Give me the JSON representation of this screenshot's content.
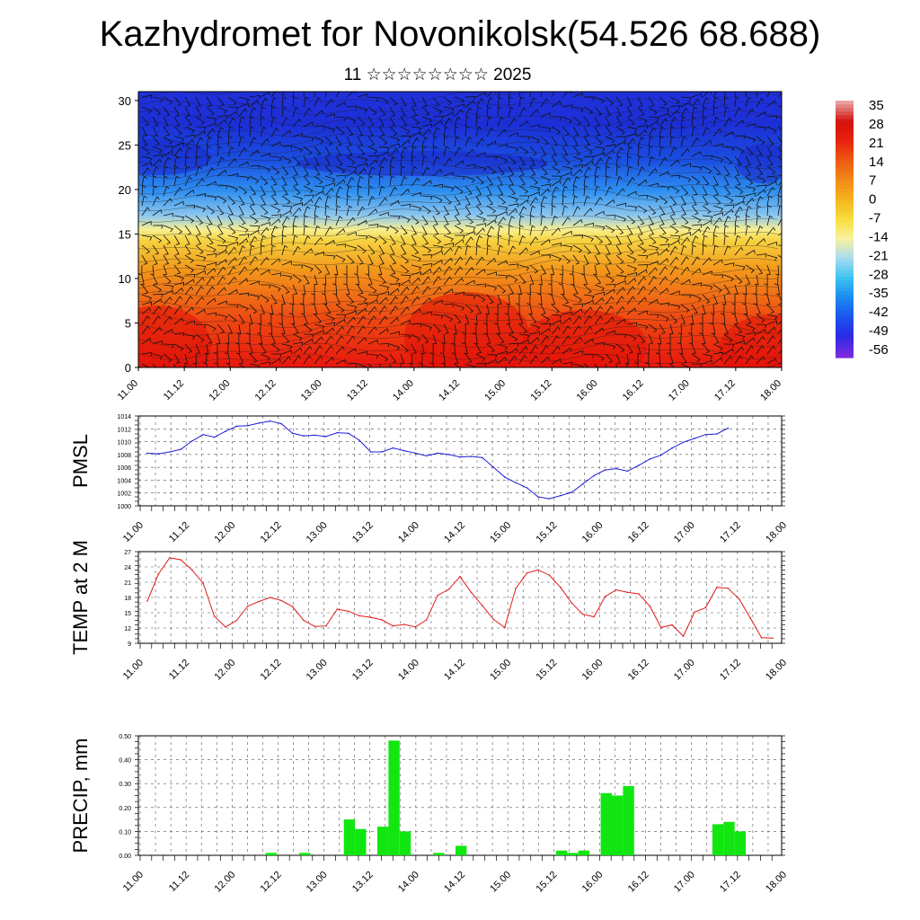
{
  "header": {
    "title": "Kazhydromet for Novonikolsk(54.526 68.688)",
    "subtitle": "11 ☆☆☆☆☆☆☆☆ 2025"
  },
  "chart_data": [
    {
      "type": "heatmap",
      "name": "cross-section",
      "x_ticks": [
        "11.00",
        "11.12",
        "12.00",
        "12.12",
        "13.00",
        "13.12",
        "14.00",
        "14.12",
        "15.00",
        "15.12",
        "16.00",
        "16.12",
        "17.00",
        "17.12",
        "18.00"
      ],
      "y_ticks": [
        0,
        5,
        10,
        15,
        20,
        25,
        30
      ],
      "ylim": [
        0,
        31
      ],
      "colorbar_labels": [
        35,
        28,
        21,
        14,
        7,
        0,
        -7,
        -14,
        -21,
        -28,
        -35,
        -42,
        -49,
        -56
      ],
      "overlay": "wind barbs and contour lines",
      "colors": {
        "warm": "#e8160e",
        "mid": "#f4e25a",
        "cold": "#1a34d6"
      }
    },
    {
      "type": "line",
      "name": "pmsl",
      "ylabel": "PMSL",
      "x_ticks": [
        "11.00",
        "11.12",
        "12.00",
        "12.12",
        "13.00",
        "13.12",
        "14.00",
        "14.12",
        "15.00",
        "15.12",
        "16.00",
        "16.12",
        "17.00",
        "17.12",
        "18.00"
      ],
      "y_ticks": [
        1000,
        1002,
        1004,
        1006,
        1008,
        1010,
        1012,
        1014
      ],
      "ylim": [
        1000,
        1014
      ],
      "step_hours": 3,
      "color": "#1f1fd6",
      "values": [
        1008.2,
        1008.1,
        1008.4,
        1008.8,
        1010.1,
        1011.1,
        1010.7,
        1011.6,
        1012.4,
        1012.5,
        1012.9,
        1013.2,
        1012.8,
        1011.3,
        1010.9,
        1011.0,
        1010.8,
        1011.4,
        1011.3,
        1010.2,
        1008.4,
        1008.4,
        1009.0,
        1008.6,
        1008.2,
        1007.8,
        1008.2,
        1008.0,
        1007.6,
        1007.7,
        1007.5,
        1006.0,
        1004.5,
        1003.6,
        1002.8,
        1001.4,
        1001.1,
        1001.6,
        1002.1,
        1003.4,
        1004.7,
        1005.6,
        1005.8,
        1005.4,
        1006.3,
        1007.3,
        1007.9,
        1009.0,
        1009.9,
        1010.5,
        1011.1,
        1011.2,
        1012.1
      ]
    },
    {
      "type": "line",
      "name": "temp",
      "ylabel": "TEMP at 2 M",
      "x_ticks": [
        "11.00",
        "11.12",
        "12.00",
        "12.12",
        "13.00",
        "13.12",
        "14.00",
        "14.12",
        "15.00",
        "15.12",
        "16.00",
        "16.12",
        "17.00",
        "17.12",
        "18.00"
      ],
      "y_ticks": [
        9,
        12,
        15,
        18,
        21,
        24,
        27
      ],
      "ylim": [
        9,
        27
      ],
      "step_hours": 3,
      "color": "#e11b1b",
      "values": [
        17.3,
        22.6,
        25.8,
        25.4,
        23.4,
        20.8,
        14.3,
        12.2,
        13.5,
        16.3,
        17.2,
        18.0,
        17.4,
        16.2,
        13.5,
        12.3,
        12.4,
        15.7,
        15.3,
        14.4,
        14.1,
        13.6,
        12.4,
        12.7,
        12.2,
        13.6,
        18.4,
        19.6,
        22.1,
        19.0,
        16.4,
        13.7,
        12.1,
        19.8,
        22.8,
        23.4,
        22.4,
        20.0,
        16.9,
        14.7,
        14.2,
        18.2,
        19.5,
        19.0,
        18.7,
        16.3,
        12.1,
        12.6,
        10.4,
        15.1,
        16.0,
        20.0,
        19.8,
        17.7,
        14.0,
        10.1,
        10.0
      ]
    },
    {
      "type": "bar",
      "name": "precip",
      "ylabel": "PRECIP, mm",
      "x_ticks": [
        "11.00",
        "11.12",
        "12.00",
        "12.12",
        "13.00",
        "13.12",
        "14.00",
        "14.12",
        "15.00",
        "15.12",
        "16.00",
        "16.12",
        "17.00",
        "17.12",
        "18.00"
      ],
      "y_ticks": [
        "0.00",
        "0.10",
        "0.20",
        "0.30",
        "0.40",
        "0.50"
      ],
      "ylim": [
        0,
        0.5
      ],
      "step_hours": 3,
      "color": "#11e611",
      "values": [
        0,
        0,
        0,
        0,
        0,
        0,
        0,
        0,
        0,
        0,
        0,
        0.01,
        0,
        0,
        0.01,
        0,
        0,
        0,
        0.15,
        0.11,
        0,
        0.12,
        0.48,
        0.1,
        0,
        0,
        0.01,
        0,
        0.04,
        0,
        0,
        0,
        0,
        0,
        0,
        0,
        0,
        0.02,
        0.01,
        0.02,
        0,
        0.26,
        0.25,
        0.29,
        0,
        0,
        0,
        0,
        0,
        0,
        0,
        0.13,
        0.14,
        0.1,
        0,
        0
      ]
    }
  ]
}
